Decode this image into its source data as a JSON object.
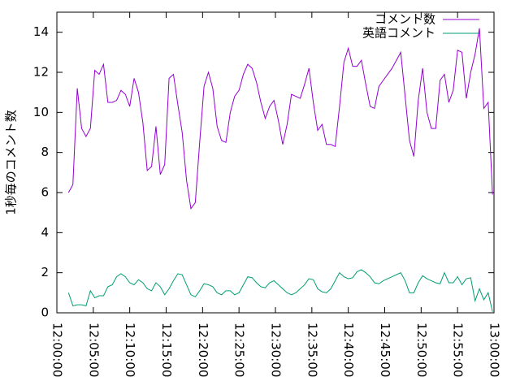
{
  "chart_data": {
    "type": "line",
    "ylabel": "1秒毎のコメント数",
    "x": [
      "12:01:36",
      "12:02:12",
      "12:02:48",
      "12:03:24",
      "12:04:00",
      "12:04:36",
      "12:05:12",
      "12:05:48",
      "12:06:24",
      "12:07:00",
      "12:07:36",
      "12:08:12",
      "12:08:48",
      "12:09:24",
      "12:10:00",
      "12:10:36",
      "12:11:12",
      "12:11:48",
      "12:12:24",
      "12:13:00",
      "12:13:36",
      "12:14:12",
      "12:14:48",
      "12:15:24",
      "12:16:00",
      "12:16:36",
      "12:17:12",
      "12:17:48",
      "12:18:24",
      "12:19:00",
      "12:19:36",
      "12:20:12",
      "12:20:48",
      "12:21:24",
      "12:22:00",
      "12:22:36",
      "12:23:12",
      "12:23:48",
      "12:24:24",
      "12:25:00",
      "12:25:36",
      "12:26:12",
      "12:26:48",
      "12:27:24",
      "12:28:00",
      "12:28:36",
      "12:29:12",
      "12:29:48",
      "12:30:24",
      "12:31:00",
      "12:31:36",
      "12:32:12",
      "12:32:48",
      "12:33:24",
      "12:34:00",
      "12:34:36",
      "12:35:12",
      "12:35:48",
      "12:36:24",
      "12:37:00",
      "12:37:36",
      "12:38:12",
      "12:38:48",
      "12:39:24",
      "12:40:00",
      "12:40:36",
      "12:41:12",
      "12:41:48",
      "12:42:24",
      "12:43:00",
      "12:43:36",
      "12:44:12",
      "12:44:48",
      "12:45:24",
      "12:46:00",
      "12:46:36",
      "12:47:12",
      "12:47:48",
      "12:48:24",
      "12:49:00",
      "12:49:36",
      "12:50:12",
      "12:50:48",
      "12:51:24",
      "12:52:00",
      "12:52:36",
      "12:53:12",
      "12:53:48",
      "12:54:24",
      "12:55:00",
      "12:55:36",
      "12:56:12",
      "12:56:48",
      "12:57:24",
      "12:58:00",
      "12:58:36",
      "12:59:12",
      "12:59:48"
    ],
    "series": [
      {
        "name": "コメント数",
        "color": "#9400d3",
        "values": [
          6.0,
          6.4,
          11.2,
          9.2,
          8.8,
          9.2,
          12.1,
          11.9,
          12.4,
          10.5,
          10.5,
          10.6,
          11.1,
          10.9,
          10.3,
          11.7,
          11.0,
          9.5,
          7.1,
          7.3,
          9.3,
          6.9,
          7.4,
          11.7,
          11.9,
          10.4,
          9.0,
          6.6,
          5.2,
          5.5,
          8.5,
          11.3,
          12.0,
          11.2,
          9.3,
          8.6,
          8.5,
          10.0,
          10.8,
          11.1,
          11.9,
          12.4,
          12.2,
          11.5,
          10.5,
          9.7,
          10.3,
          10.6,
          9.6,
          8.4,
          9.4,
          10.9,
          10.8,
          10.7,
          11.4,
          12.2,
          10.5,
          9.1,
          9.4,
          8.4,
          8.4,
          8.3,
          10.3,
          12.5,
          13.2,
          12.3,
          12.3,
          12.6,
          11.4,
          10.3,
          10.2,
          11.3,
          11.6,
          11.9,
          12.2,
          12.6,
          13.0,
          10.8,
          8.6,
          7.8,
          10.6,
          12.2,
          10.0,
          9.2,
          9.2,
          11.6,
          11.9,
          10.5,
          11.1,
          13.1,
          13.0,
          10.7,
          12.0,
          12.9,
          14.2,
          10.2,
          10.5,
          5.9
        ]
      },
      {
        "name": "英語コメント",
        "color": "#009e73",
        "values": [
          1.0,
          0.35,
          0.4,
          0.4,
          0.35,
          1.1,
          0.75,
          0.85,
          0.85,
          1.3,
          1.4,
          1.8,
          1.95,
          1.8,
          1.5,
          1.4,
          1.65,
          1.5,
          1.2,
          1.1,
          1.5,
          1.3,
          0.9,
          1.2,
          1.6,
          1.95,
          1.9,
          1.4,
          0.9,
          0.8,
          1.1,
          1.45,
          1.4,
          1.3,
          1.0,
          0.9,
          1.1,
          1.1,
          0.9,
          1.0,
          1.4,
          1.8,
          1.75,
          1.5,
          1.3,
          1.25,
          1.5,
          1.6,
          1.4,
          1.2,
          1.0,
          0.9,
          1.0,
          1.2,
          1.4,
          1.7,
          1.65,
          1.2,
          1.05,
          1.0,
          1.2,
          1.6,
          2.0,
          1.8,
          1.7,
          1.75,
          2.05,
          2.15,
          2.0,
          1.8,
          1.5,
          1.45,
          1.6,
          1.7,
          1.8,
          1.9,
          2.0,
          1.6,
          1.0,
          1.0,
          1.5,
          1.85,
          1.7,
          1.6,
          1.5,
          1.45,
          2.0,
          1.5,
          1.5,
          1.8,
          1.4,
          1.7,
          1.75,
          0.6,
          1.2,
          0.65,
          1.0,
          0.05
        ]
      }
    ],
    "xlim": [
      "12:00:00",
      "13:00:00"
    ],
    "xticks": [
      "12:00:00",
      "12:05:00",
      "12:10:00",
      "12:15:00",
      "12:20:00",
      "12:25:00",
      "12:30:00",
      "12:35:00",
      "12:40:00",
      "12:45:00",
      "12:50:00",
      "12:55:00",
      "13:00:00"
    ],
    "ylim": [
      0,
      15
    ],
    "yticks": [
      0,
      2,
      4,
      6,
      8,
      10,
      12,
      14
    ],
    "legend": "top-right"
  }
}
